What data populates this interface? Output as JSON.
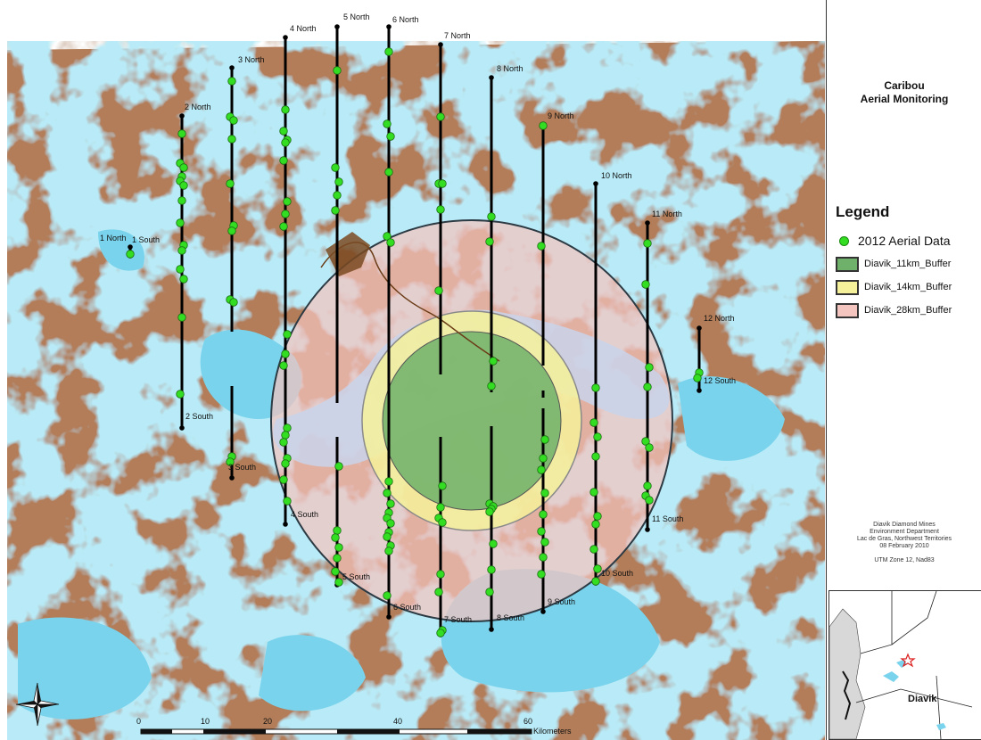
{
  "title": {
    "line1": "Caribou",
    "line2": "Aerial Monitoring"
  },
  "legend": {
    "heading": "Legend",
    "items": [
      {
        "label": "2012 Aerial Data",
        "kind": "point",
        "color": "#33dd22"
      },
      {
        "label": "Diavik_11km_Buffer",
        "kind": "area",
        "color": "#6fb06a"
      },
      {
        "label": "Diavik_14km_Buffer",
        "kind": "area",
        "color": "#f5f19a"
      },
      {
        "label": "Diavik_28km_Buffer",
        "kind": "area",
        "color": "#f4c4be"
      }
    ]
  },
  "credits": [
    "Diavik Diamond Mines",
    "Environment Department",
    "Lac de Gras, Northwest Territories",
    "08 February 2010",
    "UTM Zone 12, Nad83"
  ],
  "scale_bar": {
    "unit_label": "Kilometers",
    "ticks": [
      "0",
      "10",
      "20",
      "40",
      "60"
    ]
  },
  "inset": {
    "label": "Diavik"
  },
  "transects": [
    {
      "id": "1",
      "north_label": "1 North",
      "south_label": "1 South"
    },
    {
      "id": "2",
      "north_label": "2 North",
      "south_label": "2 South"
    },
    {
      "id": "3",
      "north_label": "3 North",
      "south_label": "3 South"
    },
    {
      "id": "4",
      "north_label": "4 North",
      "south_label": "4 South"
    },
    {
      "id": "5",
      "north_label": "5 North",
      "south_label": "5 South"
    },
    {
      "id": "6",
      "north_label": "6 North",
      "south_label": "6 South"
    },
    {
      "id": "7",
      "north_label": "7 North",
      "south_label": "7 South"
    },
    {
      "id": "8",
      "north_label": "8 North",
      "south_label": "8 South"
    },
    {
      "id": "9",
      "north_label": "9 North",
      "south_label": "9 South"
    },
    {
      "id": "10",
      "north_label": "10 North",
      "south_label": "10 South"
    },
    {
      "id": "11",
      "north_label": "11 North",
      "south_label": "11 South"
    },
    {
      "id": "12",
      "north_label": "12 North",
      "south_label": "12 South"
    }
  ],
  "colors": {
    "water": "#7ad3ec",
    "land": "#b07a55",
    "aerial_point": "#33dd22",
    "transect": "#000000"
  },
  "icons": {
    "north_arrow": "compass-rose-icon",
    "inset_marker": "star-icon"
  }
}
